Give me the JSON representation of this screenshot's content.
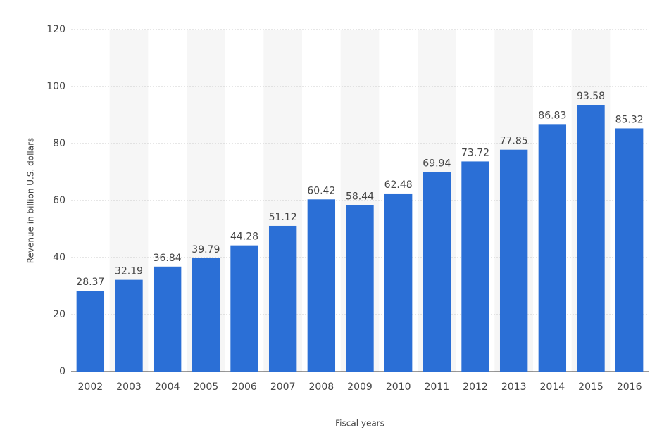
{
  "chart_data": {
    "type": "bar",
    "x_label": "Fiscal years",
    "y_label": "Revenue in billion U.S. dollars",
    "categories": [
      "2002",
      "2003",
      "2004",
      "2005",
      "2006",
      "2007",
      "2008",
      "2009",
      "2010",
      "2011",
      "2012",
      "2013",
      "2014",
      "2015",
      "2016"
    ],
    "values": [
      28.37,
      32.19,
      36.84,
      39.79,
      44.28,
      51.12,
      60.42,
      58.44,
      62.48,
      69.94,
      73.72,
      77.85,
      86.83,
      93.58,
      85.32
    ],
    "color": "#2b6fd6",
    "ylim": [
      0,
      120
    ],
    "yticks": [
      0,
      20,
      40,
      60,
      80,
      100,
      120
    ],
    "grid": true
  }
}
